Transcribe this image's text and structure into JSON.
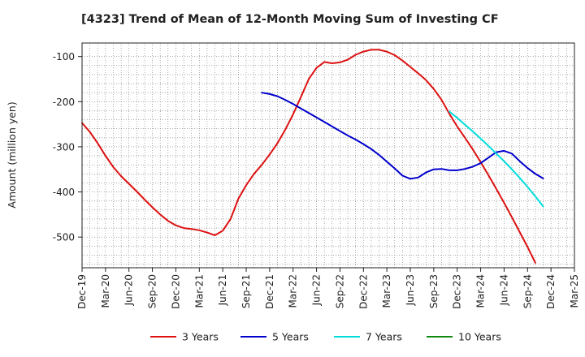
{
  "chart_data": {
    "type": "line",
    "title": "[4323]  Trend of Mean of 12-Month Moving Sum of Investing CF",
    "xlabel": "",
    "ylabel": "Amount (million yen)",
    "ylim": [
      -568,
      -70
    ],
    "yticks": [
      -100,
      -200,
      -300,
      -400,
      -500
    ],
    "yticklabels": [
      "-100",
      "-200",
      "-300",
      "-400",
      "-500"
    ],
    "xticklabels": [
      "Dec-19",
      "Mar-20",
      "Jun-20",
      "Sep-20",
      "Dec-20",
      "Mar-21",
      "Jun-21",
      "Sep-21",
      "Dec-21",
      "Mar-22",
      "Jun-22",
      "Sep-22",
      "Dec-22",
      "Mar-23",
      "Jun-23",
      "Sep-23",
      "Dec-23",
      "Mar-24",
      "Jun-24",
      "Sep-24",
      "Dec-24",
      "Mar-25"
    ],
    "grid": true,
    "legend_position": "bottom",
    "series": [
      {
        "name": "3 Years",
        "color": "#dd1111",
        "start": "Dec-19",
        "values": [
          -247,
          -267,
          -292,
          -320,
          -345,
          -365,
          -382,
          -399,
          -417,
          -434,
          -450,
          -464,
          -474,
          -480,
          -482,
          -485,
          -490,
          -496,
          -486,
          -460,
          -415,
          -385,
          -360,
          -340,
          -317,
          -292,
          -262,
          -228,
          -190,
          -150,
          -125,
          -112,
          -115,
          -113,
          -107,
          -96,
          -89,
          -85,
          -85,
          -89,
          -97,
          -109,
          -123,
          -137,
          -152,
          -172,
          -196,
          -227,
          -255,
          -280,
          -306,
          -334,
          -363,
          -393,
          -424,
          -456,
          -489,
          -522,
          -557
        ]
      },
      {
        "name": "5 Years",
        "color": "#0000cc",
        "start": "Nov-21",
        "values": [
          -180,
          -183,
          -188,
          -196,
          -205,
          -215,
          -225,
          -235,
          -245,
          -255,
          -265,
          -275,
          -284,
          -294,
          -305,
          -318,
          -333,
          -348,
          -364,
          -371,
          -368,
          -357,
          -350,
          -349,
          -352,
          -352,
          -349,
          -344,
          -336,
          -324,
          -312,
          -309,
          -315,
          -332,
          -347,
          -360,
          -370
        ]
      },
      {
        "name": "7 Years",
        "color": "#00dddd",
        "start": "Nov-23",
        "values": [
          -222,
          -236,
          -251,
          -266,
          -282,
          -298,
          -315,
          -332,
          -350,
          -369,
          -389,
          -410,
          -432
        ]
      },
      {
        "name": "10 Years",
        "color": "#118811",
        "start": "Dec-19",
        "values": []
      }
    ]
  }
}
